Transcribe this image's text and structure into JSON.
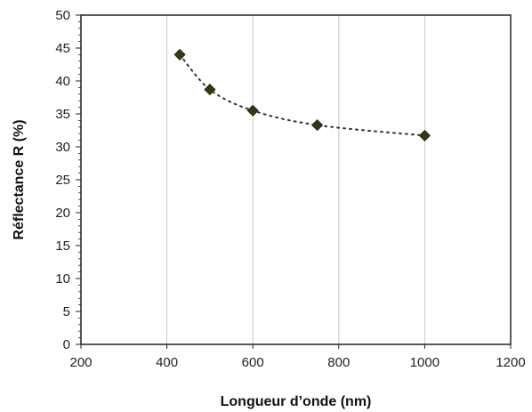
{
  "chart_data": {
    "type": "scatter",
    "title": "",
    "xlabel": "Longueur d’onde (nm)",
    "ylabel": "Réflectance R (%)",
    "xlim": [
      200,
      1200
    ],
    "ylim": [
      0,
      50
    ],
    "x_ticks": [
      200,
      400,
      600,
      800,
      1000,
      1200
    ],
    "y_ticks": [
      0,
      5,
      10,
      15,
      20,
      25,
      30,
      35,
      40,
      45,
      50
    ],
    "grid": "vertical",
    "legend": "none",
    "series": [
      {
        "marker": "diamond",
        "marker_color": "#2f3b12",
        "trendline": "dotted",
        "trendline_color": "#333333",
        "x": [
          430,
          500,
          600,
          750,
          1000
        ],
        "y": [
          44.0,
          38.7,
          35.5,
          33.3,
          31.7
        ]
      }
    ]
  }
}
